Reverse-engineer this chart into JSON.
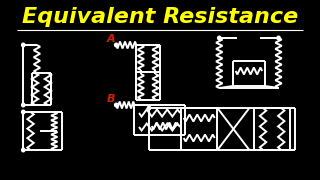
{
  "background_color": "#000000",
  "title": "Equivalent Resistance",
  "title_color": "#FFFF00",
  "title_fontsize": 16,
  "line_color": "#FFFFFF",
  "label_A_color": "#CC2200",
  "label_B_color": "#CC2200",
  "line_width": 1.4
}
